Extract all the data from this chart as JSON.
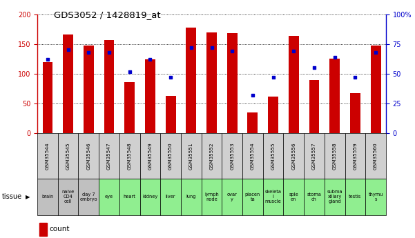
{
  "title": "GDS3052 / 1428819_at",
  "gsm_labels": [
    "GSM35544",
    "GSM35545",
    "GSM35546",
    "GSM35547",
    "GSM35548",
    "GSM35549",
    "GSM35550",
    "GSM35551",
    "GSM35552",
    "GSM35553",
    "GSM35554",
    "GSM35555",
    "GSM35556",
    "GSM35557",
    "GSM35558",
    "GSM35559",
    "GSM35560"
  ],
  "tissue_labels": [
    "brain",
    "naive\nCD4\ncell",
    "day 7\nembryо",
    "eye",
    "heart",
    "kidney",
    "liver",
    "lung",
    "lymph\nnode",
    "ovar\ny",
    "placen\nta",
    "skeleta\nl\nmuscle",
    "sple\nen",
    "stoma\nch",
    "subma\nxillary\ngland",
    "testis",
    "thymu\ns"
  ],
  "tissue_colors": [
    "#c0c0c0",
    "#c0c0c0",
    "#c0c0c0",
    "#90ee90",
    "#90ee90",
    "#90ee90",
    "#90ee90",
    "#90ee90",
    "#90ee90",
    "#90ee90",
    "#90ee90",
    "#90ee90",
    "#90ee90",
    "#90ee90",
    "#90ee90",
    "#90ee90",
    "#90ee90"
  ],
  "xticklabel_bg": "#d0d0d0",
  "count_values": [
    120,
    166,
    147,
    157,
    86,
    124,
    63,
    178,
    169,
    168,
    35,
    62,
    164,
    90,
    125,
    67,
    148
  ],
  "percentile_values": [
    62,
    70,
    68,
    68,
    52,
    62,
    47,
    72,
    72,
    69,
    32,
    47,
    69,
    55,
    64,
    47,
    68
  ],
  "count_color": "#cc0000",
  "percentile_color": "#0000cc",
  "ylim_left": [
    0,
    200
  ],
  "ylim_right": [
    0,
    100
  ],
  "yticks_left": [
    0,
    50,
    100,
    150,
    200
  ],
  "yticks_right": [
    0,
    25,
    50,
    75,
    100
  ],
  "ytick_labels_right": [
    "0",
    "25",
    "50",
    "75",
    "100%"
  ]
}
